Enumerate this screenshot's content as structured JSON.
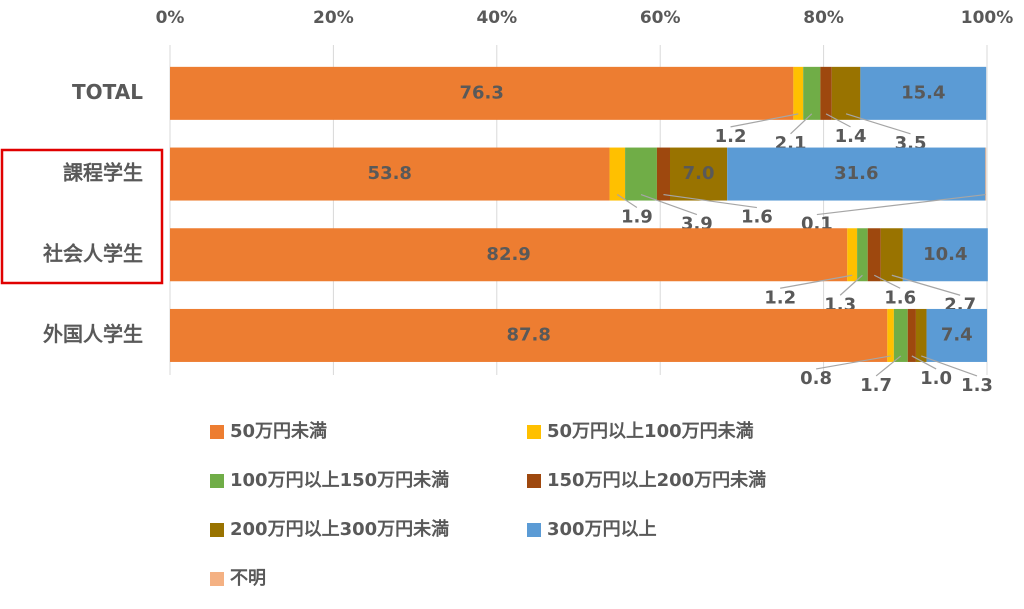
{
  "chart_data": {
    "type": "stacked-bar-horizontal",
    "categories": [
      "TOTAL",
      "課程学生",
      "社会人学生",
      "外国人学生"
    ],
    "series": [
      {
        "name": "50万円未満",
        "color": "#ED7D31",
        "values": [
          76.3,
          53.8,
          82.9,
          87.8
        ]
      },
      {
        "name": "50万円以上100万円未満",
        "color": "#FFC000",
        "values": [
          1.2,
          1.9,
          1.2,
          0.8
        ]
      },
      {
        "name": "100万円以上150万円未満",
        "color": "#70AD47",
        "values": [
          2.1,
          3.9,
          1.3,
          1.7
        ]
      },
      {
        "name": "150万円以上200万円未満",
        "color": "#9E480E",
        "values": [
          1.4,
          1.6,
          1.6,
          1.0
        ]
      },
      {
        "name": "200万円以上300万円未満",
        "color": "#997300",
        "values": [
          3.5,
          7.0,
          2.7,
          1.3
        ]
      },
      {
        "name": "300万円以上",
        "color": "#5B9BD5",
        "values": [
          15.4,
          31.6,
          10.4,
          7.4
        ]
      },
      {
        "name": "不明",
        "color": "#F4B183",
        "values": [
          0,
          0.1,
          0,
          0
        ]
      }
    ],
    "value_labels": [
      [
        "76.3",
        "53.8",
        "82.9",
        "87.8"
      ],
      [
        "1.2",
        "1.9",
        "1.2",
        "0.8"
      ],
      [
        "2.1",
        "3.9",
        "1.3",
        "1.7"
      ],
      [
        "1.4",
        "1.6",
        "1.6",
        "1.0"
      ],
      [
        "3.5",
        "7.0",
        "2.7",
        "1.3"
      ],
      [
        "15.4",
        "31.6",
        "10.4",
        "7.4"
      ],
      [
        null,
        "0.1",
        null,
        null
      ]
    ],
    "xlim": [
      0,
      100
    ],
    "xticks": [
      {
        "value": 0,
        "label": "0%"
      },
      {
        "value": 20,
        "label": "20%"
      },
      {
        "value": 40,
        "label": "40%"
      },
      {
        "value": 60,
        "label": "60%"
      },
      {
        "value": 80,
        "label": "80%"
      },
      {
        "value": 100,
        "label": "100%"
      }
    ],
    "grid": true
  }
}
